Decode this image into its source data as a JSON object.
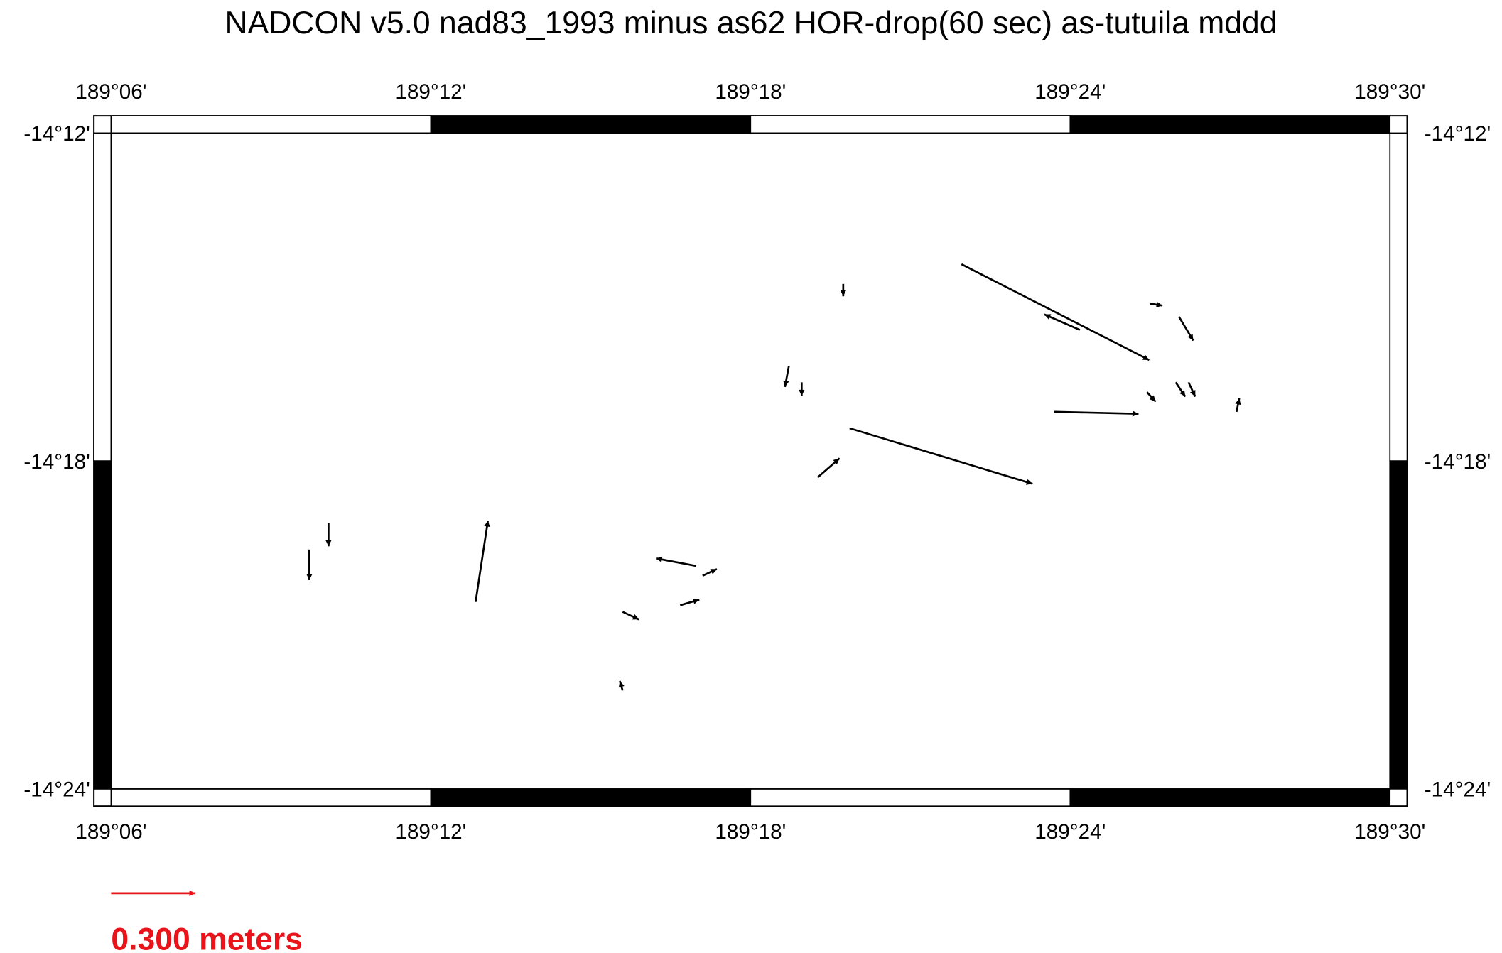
{
  "chart_data": {
    "type": "quiver",
    "title": "NADCON v5.0 nad83_1993 minus as62 HOR-drop(60 sec) as-tutuila mddd",
    "xlim": [
      189.1,
      189.5
    ],
    "ylim": [
      -14.4,
      -14.2
    ],
    "xticks": [
      {
        "value": 189.1,
        "label": "189°06'"
      },
      {
        "value": 189.2,
        "label": "189°12'"
      },
      {
        "value": 189.3,
        "label": "189°18'"
      },
      {
        "value": 189.4,
        "label": "189°24'"
      },
      {
        "value": 189.5,
        "label": "189°30'"
      }
    ],
    "yticks": [
      {
        "value": -14.2,
        "label": "-14°12'"
      },
      {
        "value": -14.3,
        "label": "-14°18'"
      },
      {
        "value": -14.4,
        "label": "-14°24'"
      }
    ],
    "color": "#000000",
    "scale": {
      "value": 0.3,
      "label": "0.300 meters",
      "color": "#e8141a"
    },
    "vectors": [
      {
        "x": 189.331,
        "y": -14.29,
        "u": 0.651,
        "v": -0.198
      },
      {
        "x": 189.366,
        "y": -14.24,
        "u": 0.668,
        "v": -0.341
      },
      {
        "x": 189.395,
        "y": -14.285,
        "u": 0.3,
        "v": -0.007
      },
      {
        "x": 189.214,
        "y": -14.343,
        "u": 0.044,
        "v": 0.29
      },
      {
        "x": 189.403,
        "y": -14.26,
        "u": -0.126,
        "v": 0.055
      },
      {
        "x": 189.283,
        "y": -14.332,
        "u": -0.143,
        "v": 0.027
      },
      {
        "x": 189.321,
        "y": -14.305,
        "u": 0.078,
        "v": 0.068
      },
      {
        "x": 189.162,
        "y": -14.327,
        "u": 0,
        "v": -0.109
      },
      {
        "x": 189.168,
        "y": -14.319,
        "u": 0,
        "v": -0.082
      },
      {
        "x": 189.26,
        "y": -14.346,
        "u": 0.058,
        "v": -0.027
      },
      {
        "x": 189.278,
        "y": -14.344,
        "u": 0.068,
        "v": 0.02
      },
      {
        "x": 189.434,
        "y": -14.256,
        "u": 0.051,
        "v": -0.085
      },
      {
        "x": 189.433,
        "y": -14.276,
        "u": 0.034,
        "v": -0.051
      },
      {
        "x": 189.437,
        "y": -14.276,
        "u": 0.024,
        "v": -0.051
      },
      {
        "x": 189.424,
        "y": -14.279,
        "u": 0.031,
        "v": -0.034
      },
      {
        "x": 189.425,
        "y": -14.252,
        "u": 0.044,
        "v": -0.007
      },
      {
        "x": 189.312,
        "y": -14.271,
        "u": -0.014,
        "v": -0.075
      },
      {
        "x": 189.316,
        "y": -14.276,
        "u": 0,
        "v": -0.048
      },
      {
        "x": 189.26,
        "y": -14.37,
        "u": -0.01,
        "v": 0.034
      },
      {
        "x": 189.329,
        "y": -14.246,
        "u": 0,
        "v": -0.044
      },
      {
        "x": 189.452,
        "y": -14.285,
        "u": 0.01,
        "v": 0.048
      },
      {
        "x": 189.285,
        "y": -14.335,
        "u": 0.051,
        "v": 0.024
      }
    ]
  }
}
